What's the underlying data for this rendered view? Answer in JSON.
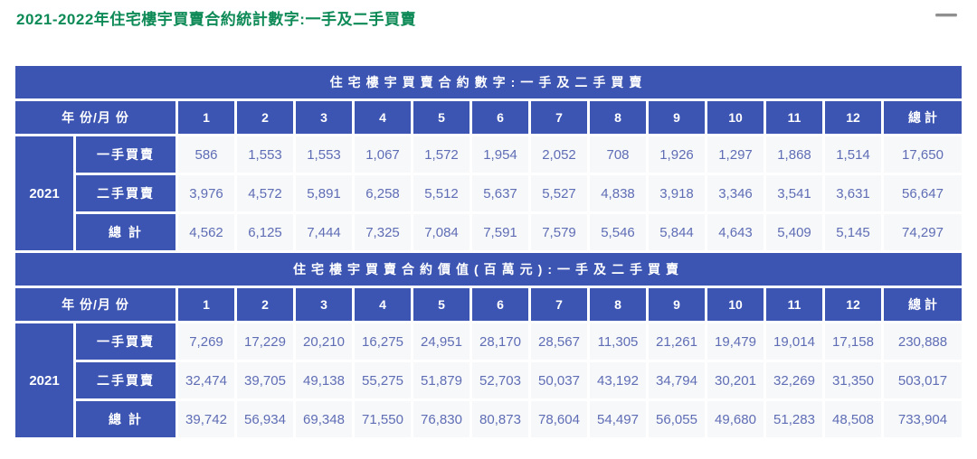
{
  "page": {
    "title": "2021-2022年住宅樓宇買賣合約統計數字:一手及二手買賣"
  },
  "colors": {
    "header_blue": "#3D55B2",
    "title_green": "#0E8A57",
    "cell_background": "#F7F8FA",
    "cell_text": "#5F6DB5"
  },
  "tables": [
    {
      "banner": "住宅樓宇買賣合約數字:一手及二手買賣",
      "corner_header": "年 份/月 份",
      "month_headers": [
        "1",
        "2",
        "3",
        "4",
        "5",
        "6",
        "7",
        "8",
        "9",
        "10",
        "11",
        "12"
      ],
      "total_header": "總 計",
      "year": "2021",
      "rows": [
        {
          "label": "一手買賣",
          "values": [
            "586",
            "1,553",
            "1,553",
            "1,067",
            "1,572",
            "1,954",
            "2,052",
            "708",
            "1,926",
            "1,297",
            "1,868",
            "1,514"
          ],
          "total": "17,650"
        },
        {
          "label": "二手買賣",
          "values": [
            "3,976",
            "4,572",
            "5,891",
            "6,258",
            "5,512",
            "5,637",
            "5,527",
            "4,838",
            "3,918",
            "3,346",
            "3,541",
            "3,631"
          ],
          "total": "56,647"
        },
        {
          "label": "總 計",
          "values": [
            "4,562",
            "6,125",
            "7,444",
            "7,325",
            "7,084",
            "7,591",
            "7,579",
            "5,546",
            "5,844",
            "4,643",
            "5,409",
            "5,145"
          ],
          "total": "74,297"
        }
      ]
    },
    {
      "banner": "住宅樓宇買賣合約價值(百萬元):一手及二手買賣",
      "corner_header": "年 份/月 份",
      "month_headers": [
        "1",
        "2",
        "3",
        "4",
        "5",
        "6",
        "7",
        "8",
        "9",
        "10",
        "11",
        "12"
      ],
      "total_header": "總 計",
      "year": "2021",
      "rows": [
        {
          "label": "一手買賣",
          "values": [
            "7,269",
            "17,229",
            "20,210",
            "16,275",
            "24,951",
            "28,170",
            "28,567",
            "11,305",
            "21,261",
            "19,479",
            "19,014",
            "17,158"
          ],
          "total": "230,888"
        },
        {
          "label": "二手買賣",
          "values": [
            "32,474",
            "39,705",
            "49,138",
            "55,275",
            "51,879",
            "52,703",
            "50,037",
            "43,192",
            "34,794",
            "30,201",
            "32,269",
            "31,350"
          ],
          "total": "503,017"
        },
        {
          "label": "總 計",
          "values": [
            "39,742",
            "56,934",
            "69,348",
            "71,550",
            "76,830",
            "80,873",
            "78,604",
            "54,497",
            "56,055",
            "49,680",
            "51,283",
            "48,508"
          ],
          "total": "733,904"
        }
      ]
    }
  ]
}
